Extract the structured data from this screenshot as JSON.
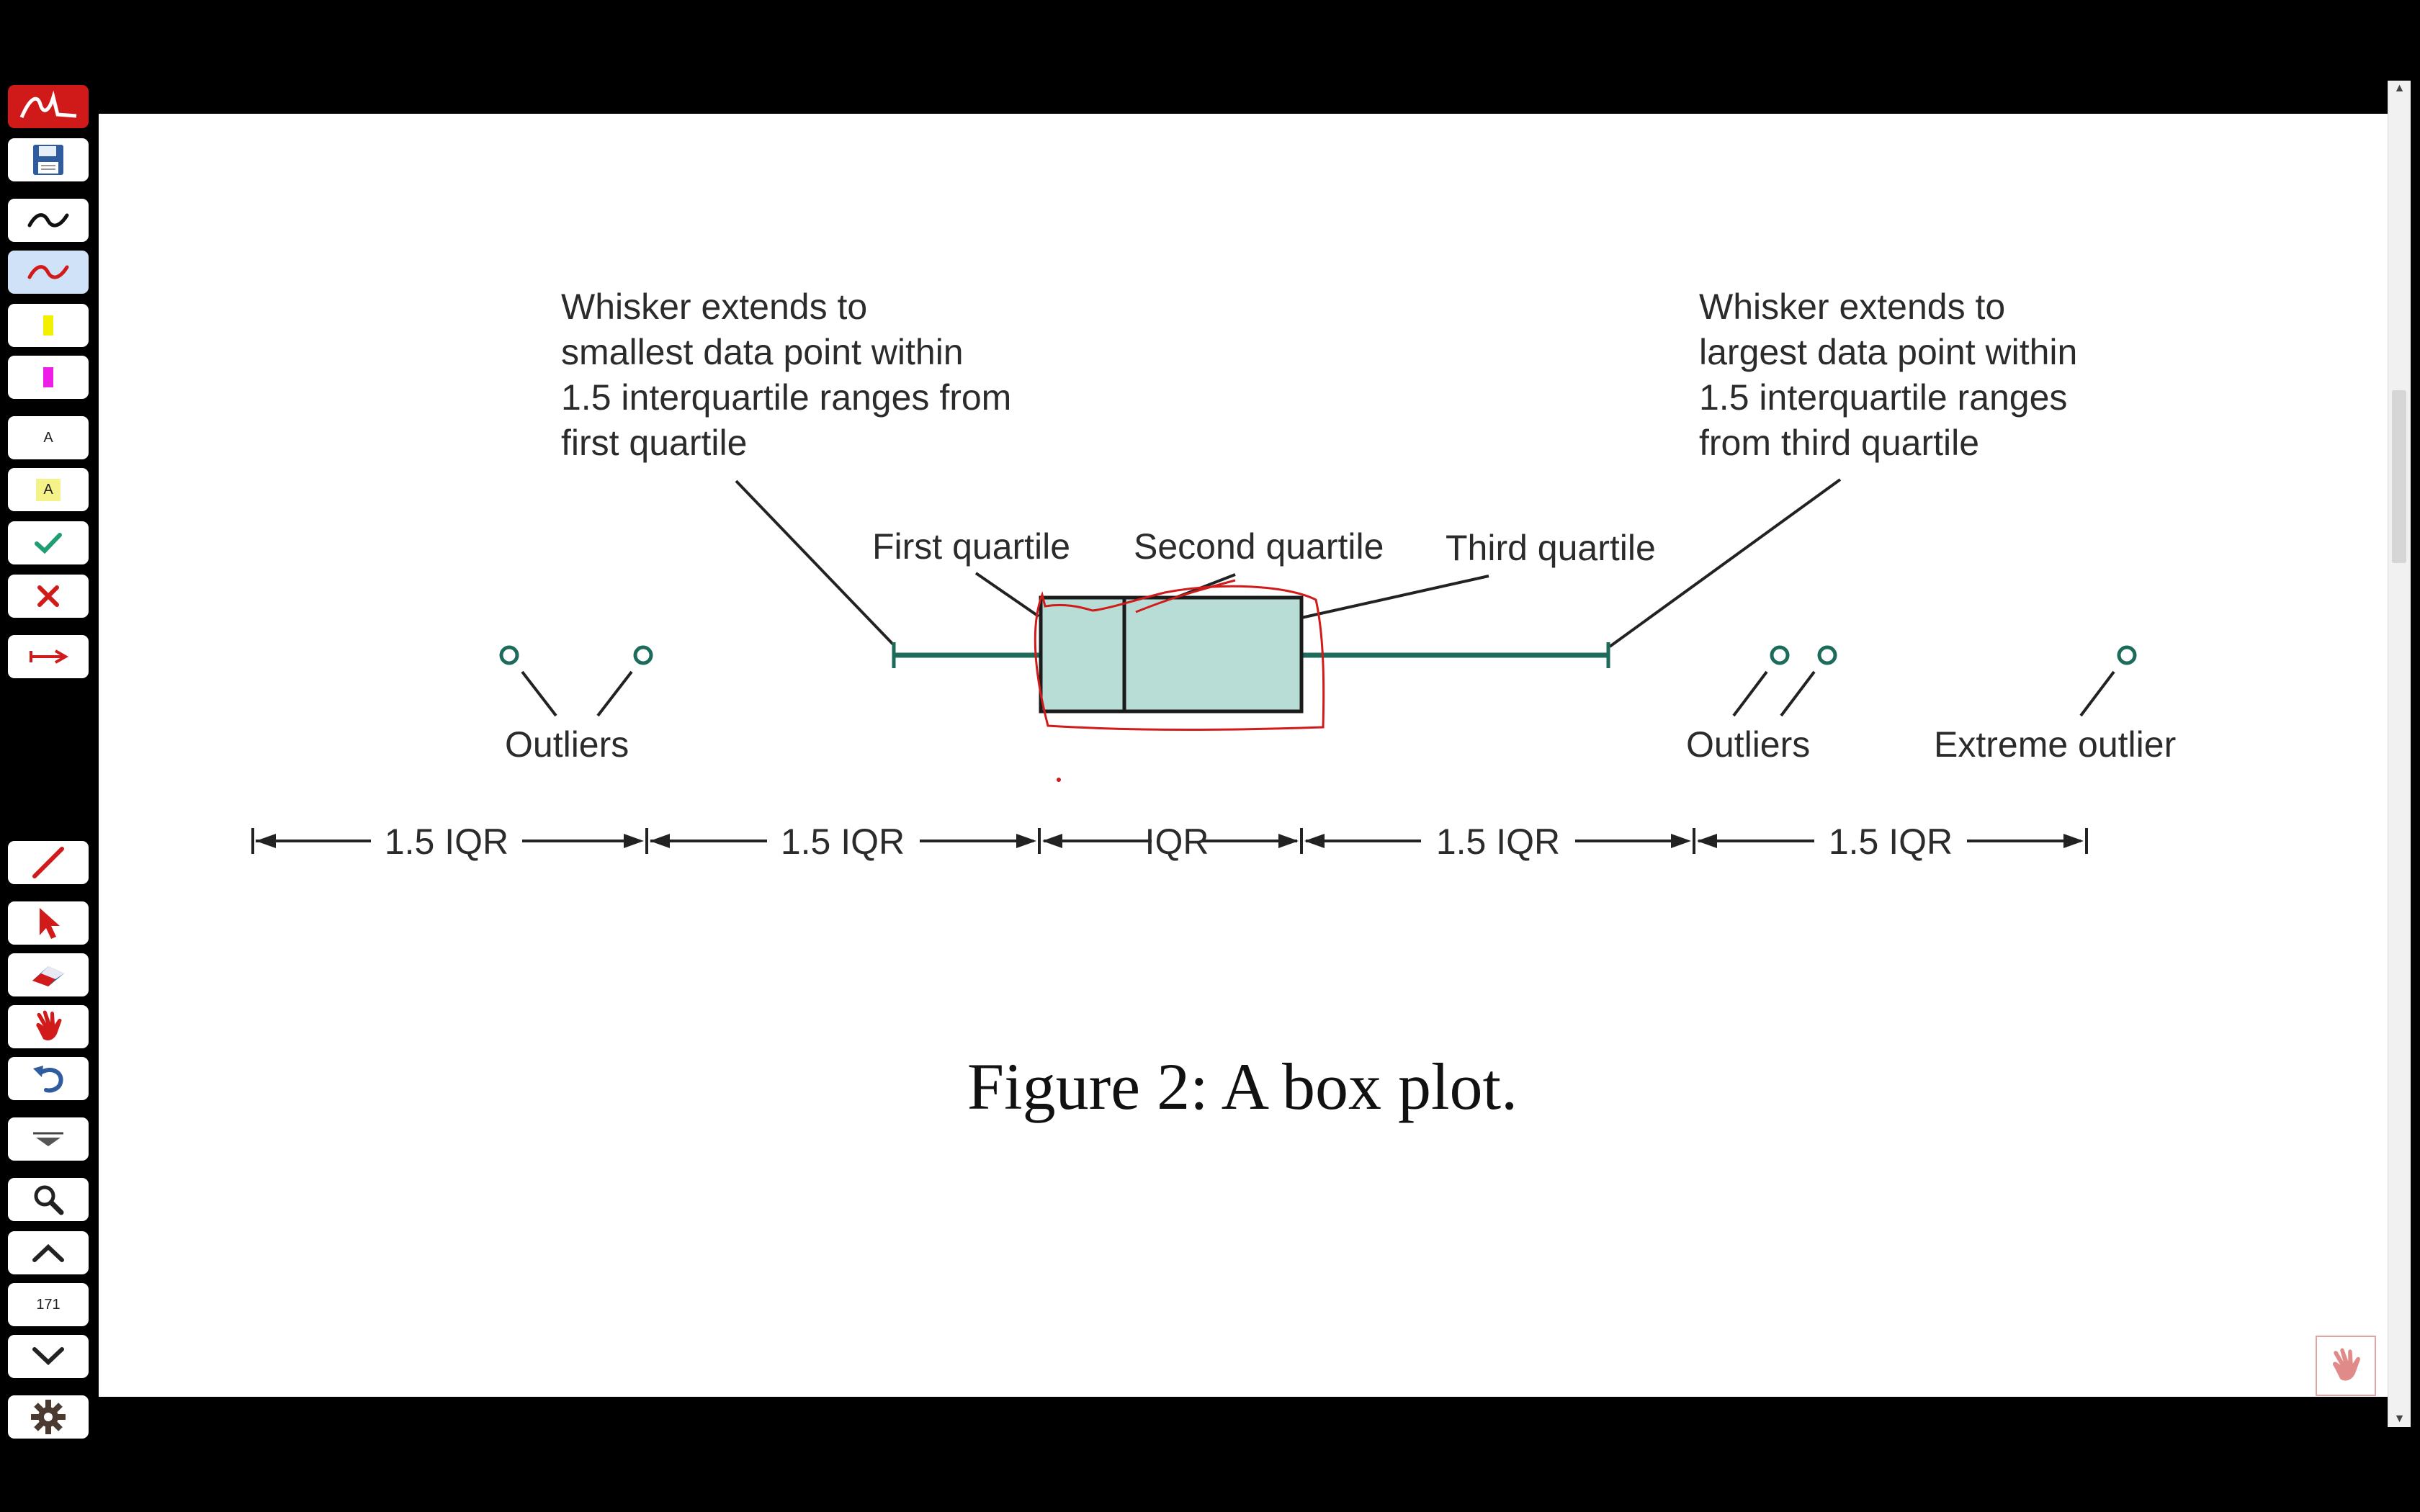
{
  "toolbar": {
    "tools": [
      {
        "name": "app-logo-icon"
      },
      {
        "name": "save-icon"
      },
      {
        "name": "black-pen-icon"
      },
      {
        "name": "red-pen-icon",
        "active": true
      },
      {
        "name": "yellow-highlighter-icon"
      },
      {
        "name": "magenta-highlighter-icon"
      },
      {
        "name": "text-tool-icon",
        "label": "A"
      },
      {
        "name": "text-highlight-icon",
        "label": "A"
      },
      {
        "name": "check-mark-icon"
      },
      {
        "name": "cross-mark-icon"
      },
      {
        "name": "arrow-tool-icon"
      },
      {
        "name": "line-tool-icon"
      },
      {
        "name": "pointer-icon"
      },
      {
        "name": "eraser-icon"
      },
      {
        "name": "hand-icon"
      },
      {
        "name": "undo-icon"
      },
      {
        "name": "dropdown-icon"
      },
      {
        "name": "zoom-icon"
      },
      {
        "name": "page-up-icon"
      },
      {
        "name": "page-number",
        "label": "171"
      },
      {
        "name": "page-down-icon"
      },
      {
        "name": "settings-gear-icon"
      }
    ]
  },
  "colors": {
    "box_fill": "#b8ddd6",
    "whisker": "#1c6b5b",
    "annotation": "#d11a1a",
    "toolbar_bg": "#000000",
    "logo_red": "#d01a1a"
  },
  "figure": {
    "annotations": {
      "left_whisker": [
        "Whisker extends to",
        "smallest data point within",
        "1.5 interquartile ranges from",
        "first quartile"
      ],
      "right_whisker": [
        "Whisker extends to",
        "largest data point within",
        "1.5 interquartile ranges",
        "from third quartile"
      ],
      "first_quartile": "First quartile",
      "second_quartile": "Second quartile",
      "third_quartile": "Third quartile",
      "outliers_left": "Outliers",
      "outliers_right": "Outliers",
      "extreme_outlier": "Extreme outlier"
    },
    "ranges": [
      "1.5 IQR",
      "1.5 IQR",
      "IQR",
      "1.5 IQR",
      "1.5 IQR"
    ],
    "caption": "Figure 2: A box plot."
  }
}
